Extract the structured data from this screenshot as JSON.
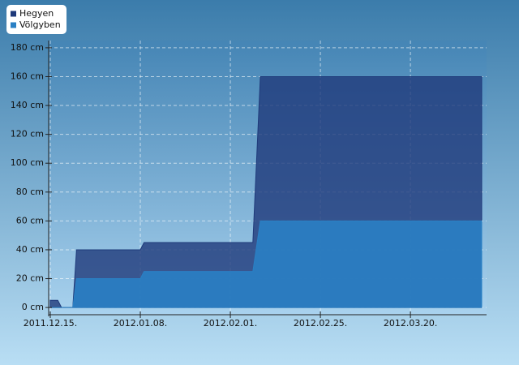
{
  "chart_data": {
    "type": "area",
    "x": [
      "2011.12.15.",
      "2011.12.17.",
      "2011.12.18.",
      "2011.12.21.",
      "2011.12.22.",
      "2012.01.08.",
      "2012.01.09.",
      "2012.02.07.",
      "2012.02.09.",
      "2012.04.08."
    ],
    "series": [
      {
        "name": "Hegyen",
        "color": "#1f3a7a",
        "values": [
          5,
          5,
          0,
          0,
          40,
          40,
          45,
          45,
          160,
          160
        ]
      },
      {
        "name": "Völgyben",
        "color": "#2a80c4",
        "values": [
          0,
          0,
          0,
          0,
          20,
          20,
          25,
          25,
          60,
          60
        ]
      }
    ],
    "xlim": [
      "2011.12.15.",
      "2012.04.08."
    ],
    "xticks": [
      "2011.12.15.",
      "2012.01.08.",
      "2012.02.01.",
      "2012.02.25.",
      "2012.03.20."
    ],
    "ylim": [
      -5,
      185
    ],
    "yticks": [
      {
        "value": 0,
        "label": "0 cm"
      },
      {
        "value": 20,
        "label": "20 cm"
      },
      {
        "value": 40,
        "label": "40 cm"
      },
      {
        "value": 60,
        "label": "60 cm"
      },
      {
        "value": 80,
        "label": "80 cm"
      },
      {
        "value": 100,
        "label": "100 cm"
      },
      {
        "value": 120,
        "label": "120 cm"
      },
      {
        "value": 140,
        "label": "140 cm"
      },
      {
        "value": 160,
        "label": "160 cm"
      },
      {
        "value": 180,
        "label": "180 cm"
      }
    ],
    "grid": true,
    "legend": "top-left"
  }
}
